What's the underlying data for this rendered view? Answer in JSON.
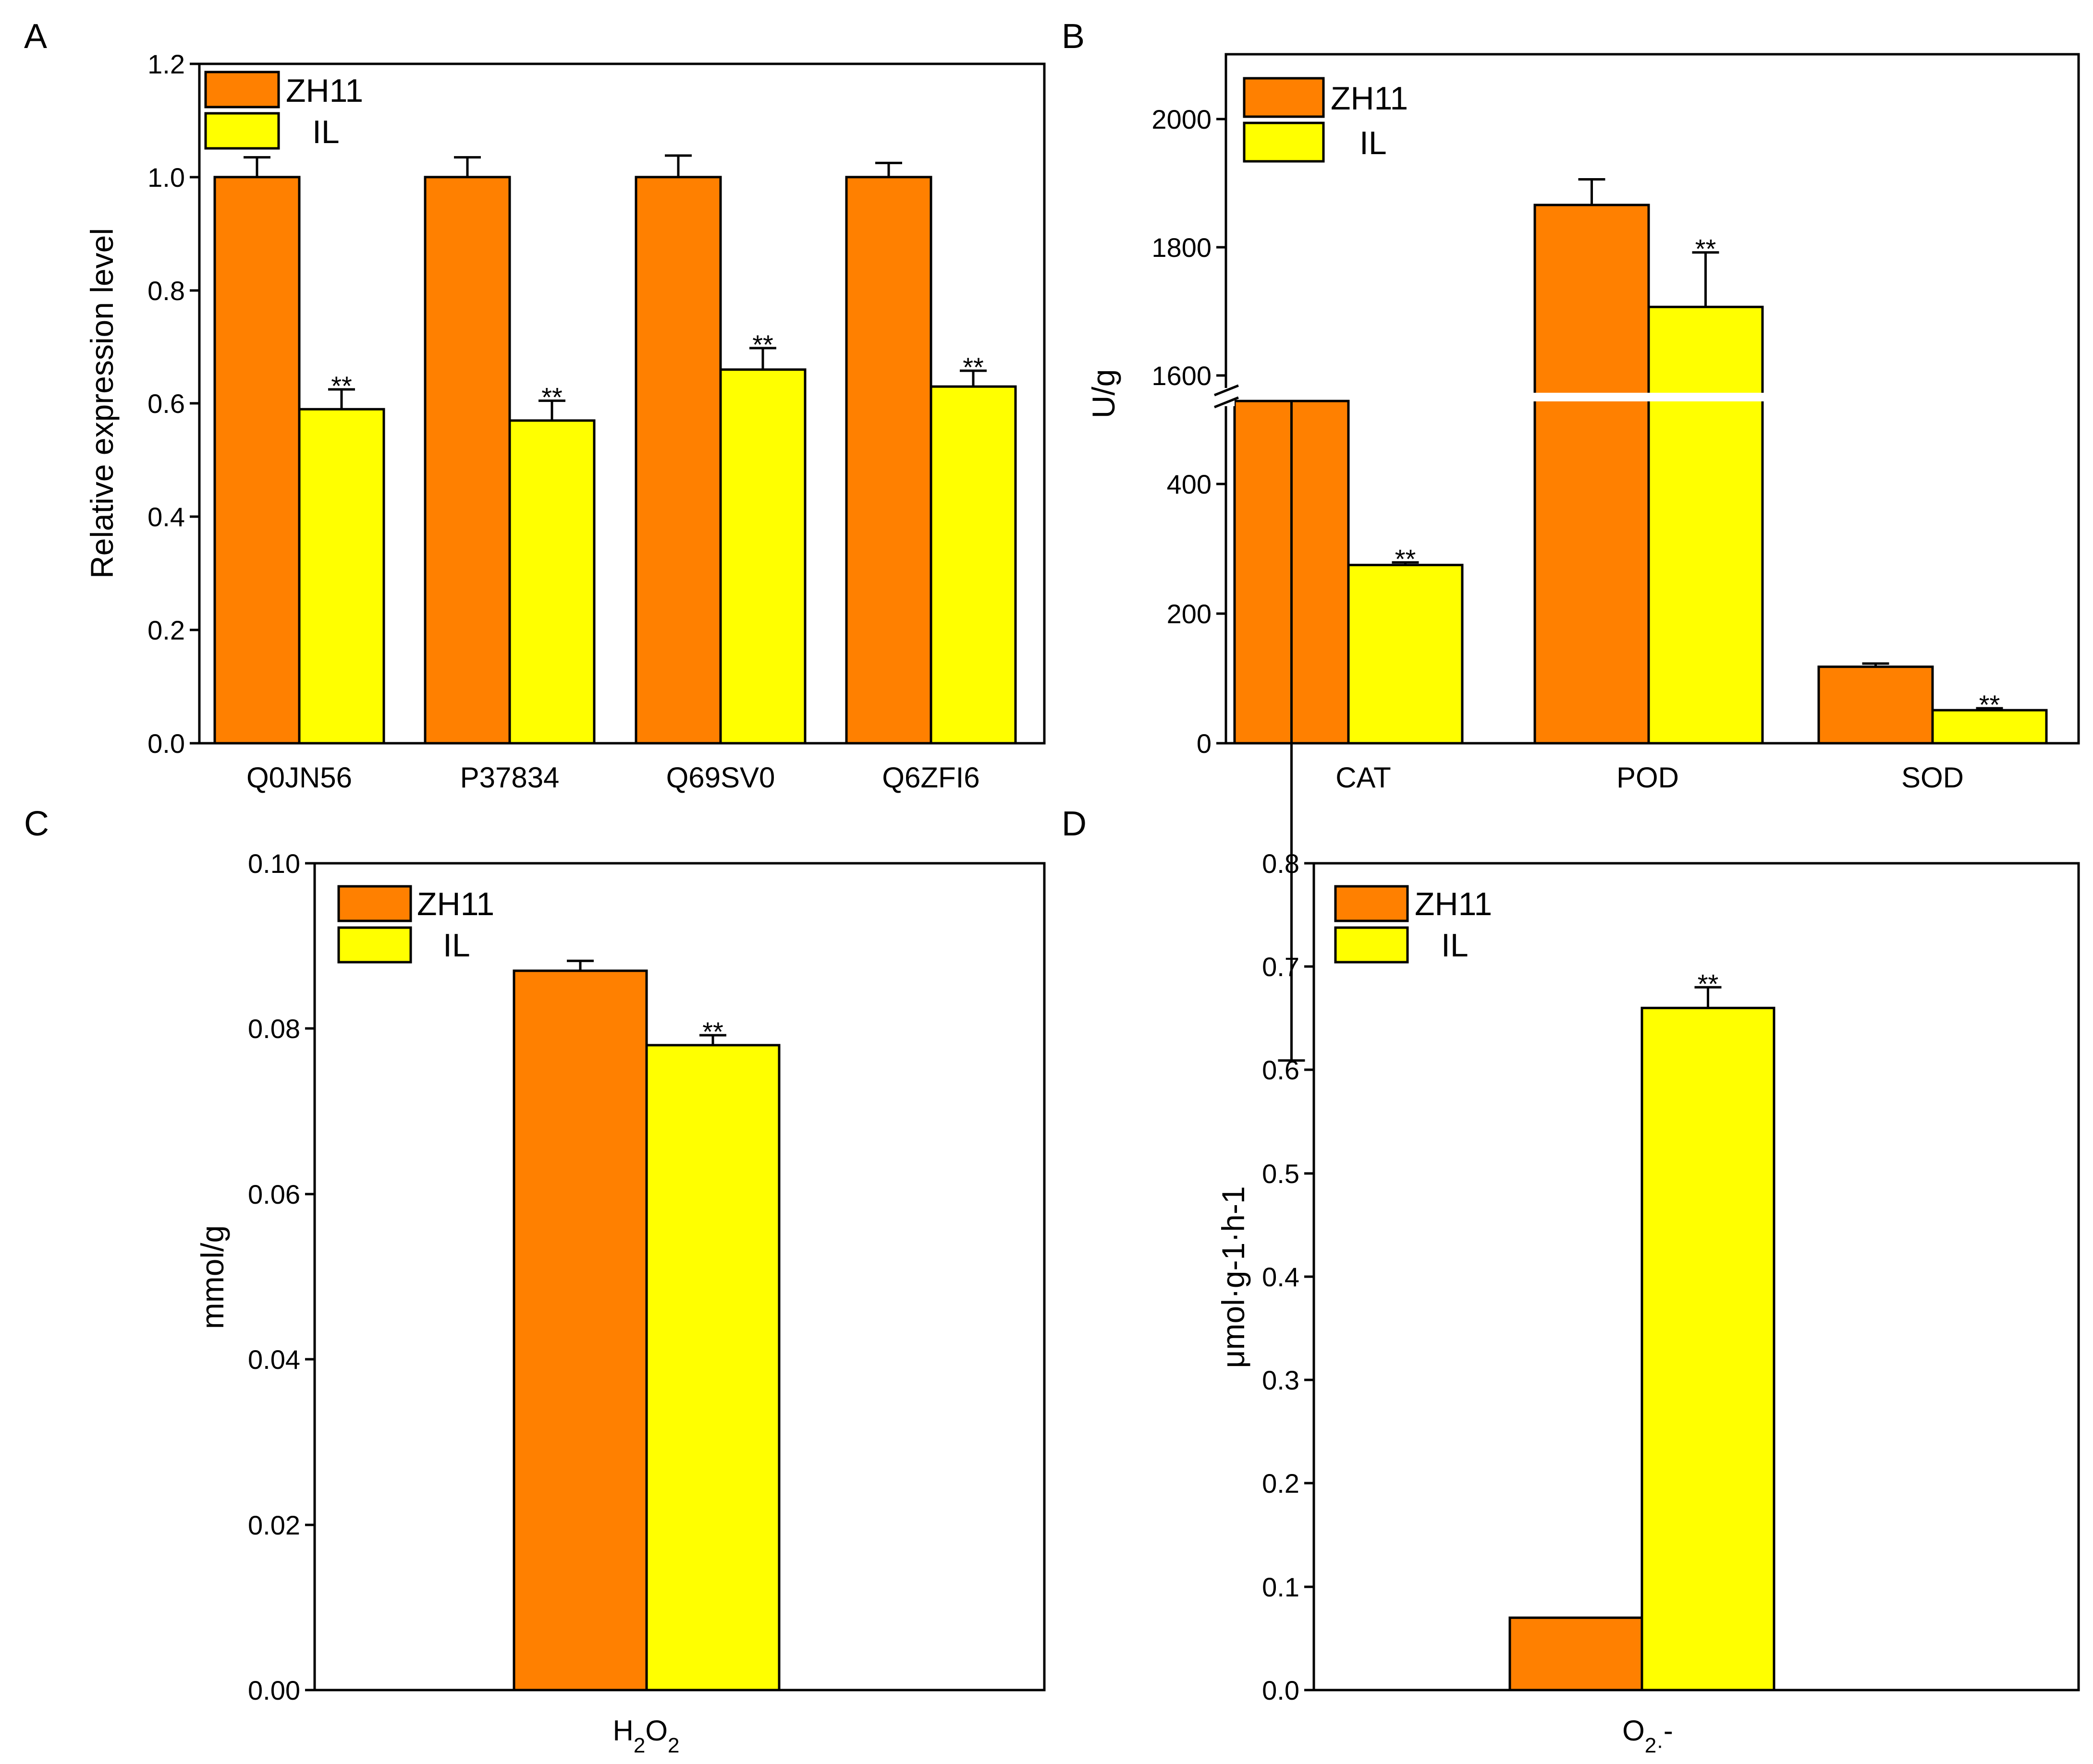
{
  "colors": {
    "zh11": "#FF8000",
    "il": "#FFFF00",
    "axis": "#000000"
  },
  "legend": [
    "ZH11",
    "IL"
  ],
  "chart_data": [
    {
      "panel": "A",
      "type": "bar",
      "ylabel": "Relative expression level",
      "xlabel": "",
      "ylim": [
        0,
        1.2
      ],
      "yticks": [
        "0.0",
        "0.2",
        "0.4",
        "0.6",
        "0.8",
        "1.0",
        "1.2"
      ],
      "categories": [
        "Q0JN56",
        "P37834",
        "Q69SV0",
        "Q6ZFI6"
      ],
      "series": [
        {
          "name": "ZH11",
          "values": [
            1.0,
            1.0,
            1.0,
            1.0
          ],
          "errors": [
            0.035,
            0.035,
            0.038,
            0.025
          ]
        },
        {
          "name": "IL",
          "values": [
            0.59,
            0.57,
            0.66,
            0.63
          ],
          "errors": [
            0.035,
            0.035,
            0.038,
            0.028
          ]
        }
      ],
      "significance": [
        "**",
        "**",
        "**",
        "**"
      ]
    },
    {
      "panel": "B",
      "type": "bar",
      "ylabel": "U/g",
      "xlabel": "",
      "axis_break": {
        "lower": [
          0,
          530
        ],
        "upper": [
          1570,
          2100
        ]
      },
      "yticks": [
        "0",
        "200",
        "400",
        "1600",
        "1800",
        "2000"
      ],
      "categories": [
        "CAT",
        "POD",
        "SOD"
      ],
      "series": [
        {
          "name": "ZH11",
          "values": [
            528,
            1865,
            118
          ],
          "errors": [
            3,
            40,
            5
          ]
        },
        {
          "name": "IL",
          "values": [
            275,
            1706,
            51
          ],
          "errors": [
            4,
            85,
            3
          ]
        }
      ],
      "significance": [
        "**",
        "**",
        "**"
      ]
    },
    {
      "panel": "C",
      "type": "bar",
      "ylabel": "mmol/g",
      "xlabel": "H2O2",
      "ylim": [
        0,
        0.1
      ],
      "yticks": [
        "0.00",
        "0.02",
        "0.04",
        "0.06",
        "0.08",
        "0.10"
      ],
      "categories": [
        "H2O2"
      ],
      "series": [
        {
          "name": "ZH11",
          "values": [
            0.087
          ],
          "errors": [
            0.0012
          ]
        },
        {
          "name": "IL",
          "values": [
            0.078
          ],
          "errors": [
            0.0012
          ]
        }
      ],
      "significance": [
        "**"
      ]
    },
    {
      "panel": "D",
      "type": "bar",
      "ylabel": "μmol·g-1·h-1",
      "xlabel": "O2·-",
      "ylim": [
        0,
        0.8
      ],
      "yticks": [
        "0.0",
        "0.1",
        "0.2",
        "0.3",
        "0.4",
        "0.5",
        "0.6",
        "0.7",
        "0.8"
      ],
      "categories": [
        "O2·-"
      ],
      "series": [
        {
          "name": "ZH11",
          "values": [
            0.07
          ],
          "errors": [
            0
          ]
        },
        {
          "name": "IL",
          "values": [
            0.66
          ],
          "errors": [
            0.02
          ]
        }
      ],
      "significance": [
        "**"
      ]
    }
  ]
}
